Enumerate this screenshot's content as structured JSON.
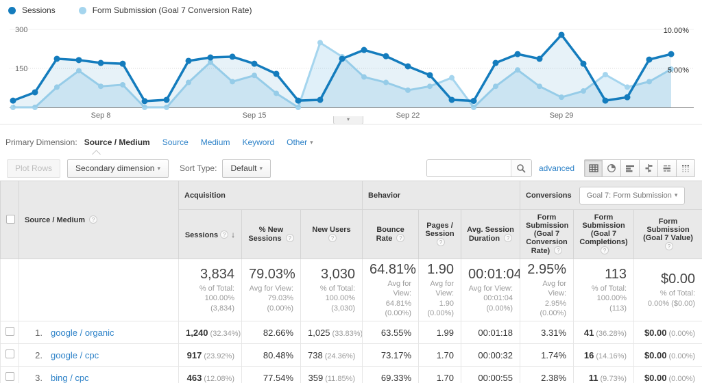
{
  "colors": {
    "sessions": "#147cbd",
    "goal": "#a5d5ee",
    "link": "#2d82c8"
  },
  "icons": {
    "help": "?",
    "caret_down": "▾",
    "sort_desc": "↓",
    "collapse": "▾"
  },
  "legend": {
    "items": [
      {
        "label": "Sessions"
      },
      {
        "label": "Form Submission (Goal 7 Conversion Rate)"
      }
    ]
  },
  "chart_data": {
    "type": "line",
    "x_tick_labels": [
      "Sep 8",
      "Sep 15",
      "Sep 22",
      "Sep 29"
    ],
    "x_tick_indices": [
      4,
      11,
      18,
      25
    ],
    "left_axis": {
      "ticks": [
        "300",
        "150"
      ],
      "max": 300
    },
    "right_axis": {
      "ticks": [
        "10.00%",
        "5.00%"
      ],
      "max": 10
    },
    "legend_position": "top-left",
    "series": [
      {
        "name": "Sessions",
        "axis": "left",
        "values": [
          26,
          58,
          187,
          182,
          171,
          168,
          24,
          29,
          179,
          192,
          195,
          168,
          129,
          26,
          29,
          187,
          221,
          197,
          158,
          124,
          29,
          25,
          171,
          205,
          187,
          279,
          168,
          26,
          39,
          184,
          205
        ]
      },
      {
        "name": "Form Submission (Goal 7 Conversion Rate)",
        "axis": "right",
        "values": [
          0,
          0,
          2.6,
          4.7,
          2.7,
          2.9,
          0,
          0,
          3.2,
          5.8,
          3.3,
          4.1,
          1.8,
          0,
          8.3,
          6.5,
          3.9,
          3.2,
          2.2,
          2.7,
          3.8,
          0,
          2.7,
          4.8,
          2.7,
          1.3,
          2.1,
          4.2,
          2.6,
          3.3,
          4.9
        ]
      }
    ]
  },
  "primary_dimension": {
    "label": "Primary Dimension:",
    "selected": "Source / Medium",
    "links": [
      "Source",
      "Medium",
      "Keyword"
    ],
    "other": "Other"
  },
  "toolbar": {
    "plot_rows": "Plot Rows",
    "secondary_dimension": "Secondary dimension",
    "sort_type_label": "Sort Type:",
    "sort_type_value": "Default",
    "search_value": "",
    "advanced": "advanced"
  },
  "table": {
    "groups": {
      "acquisition": "Acquisition",
      "behavior": "Behavior",
      "conversions": "Conversions",
      "goal_selector": "Goal 7: Form Submission"
    },
    "headers": {
      "source": "Source / Medium",
      "sessions": "Sessions",
      "new_sessions": "% New Sessions",
      "new_users": "New Users",
      "bounce": "Bounce Rate",
      "pages": "Pages / Session",
      "duration": "Avg. Session Duration",
      "conv_rate": "Form Submission (Goal 7 Conversion Rate)",
      "completions": "Form Submission (Goal 7 Completions)",
      "value": "Form Submission (Goal 7 Value)"
    },
    "totals": {
      "sessions": {
        "main": "3,834",
        "sub": "% of Total: 100.00% (3,834)"
      },
      "new_sessions": {
        "main": "79.03%",
        "sub": "Avg for View: 79.03% (0.00%)"
      },
      "new_users": {
        "main": "3,030",
        "sub": "% of Total: 100.00% (3,030)"
      },
      "bounce": {
        "main": "64.81%",
        "sub": "Avg for View: 64.81% (0.00%)"
      },
      "pages": {
        "main": "1.90",
        "sub": "Avg for View: 1.90 (0.00%)"
      },
      "duration": {
        "main": "00:01:04",
        "sub": "Avg for View: 00:01:04 (0.00%)"
      },
      "conv_rate": {
        "main": "2.95%",
        "sub": "Avg for View: 2.95% (0.00%)"
      },
      "completions": {
        "main": "113",
        "sub": "% of Total: 100.00% (113)"
      },
      "value": {
        "main": "$0.00",
        "sub": "% of Total: 0.00% ($0.00)"
      }
    },
    "rows": [
      {
        "index": "1.",
        "source": "google / organic",
        "sessions": "1,240",
        "sessions_pct": "(32.34%)",
        "new_sessions": "82.66%",
        "new_users": "1,025",
        "new_users_pct": "(33.83%)",
        "bounce": "63.55%",
        "pages": "1.99",
        "duration": "00:01:18",
        "conv_rate": "3.31%",
        "completions": "41",
        "completions_pct": "(36.28%)",
        "value": "$0.00",
        "value_pct": "(0.00%)"
      },
      {
        "index": "2.",
        "source": "google / cpc",
        "sessions": "917",
        "sessions_pct": "(23.92%)",
        "new_sessions": "80.48%",
        "new_users": "738",
        "new_users_pct": "(24.36%)",
        "bounce": "73.17%",
        "pages": "1.70",
        "duration": "00:00:32",
        "conv_rate": "1.74%",
        "completions": "16",
        "completions_pct": "(14.16%)",
        "value": "$0.00",
        "value_pct": "(0.00%)"
      },
      {
        "index": "3.",
        "source": "bing / cpc",
        "sessions": "463",
        "sessions_pct": "(12.08%)",
        "new_sessions": "77.54%",
        "new_users": "359",
        "new_users_pct": "(11.85%)",
        "bounce": "69.33%",
        "pages": "1.70",
        "duration": "00:00:55",
        "conv_rate": "2.38%",
        "completions": "11",
        "completions_pct": "(9.73%)",
        "value": "$0.00",
        "value_pct": "(0.00%)"
      }
    ]
  }
}
